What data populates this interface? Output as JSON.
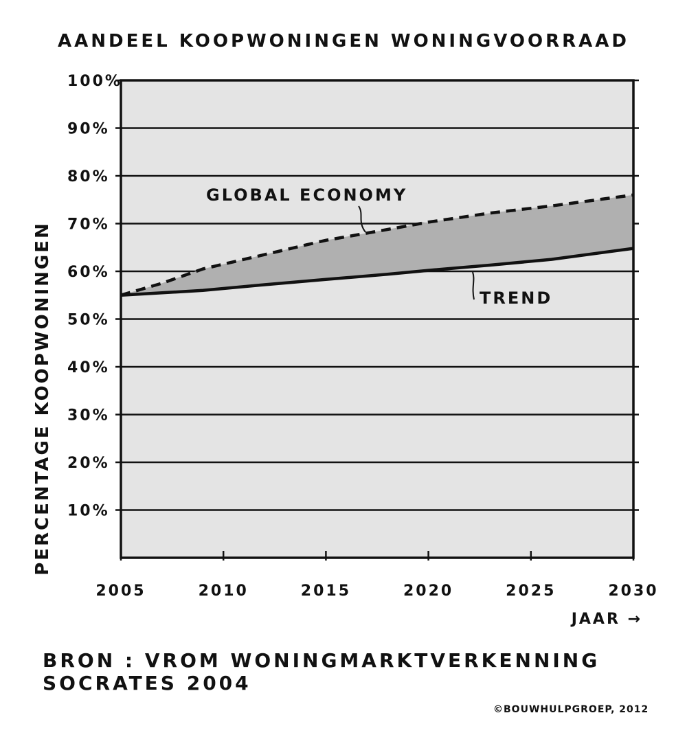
{
  "chart_data": {
    "type": "area",
    "title": "AANDEEL KOOPWONINGEN WONINGVOORRAAD",
    "xlabel": "JAAR →",
    "ylabel": "PERCENTAGE KOOPWONINGEN",
    "xlim": [
      2005,
      2030
    ],
    "ylim": [
      0,
      100
    ],
    "x_ticks": [
      "2005",
      "2010",
      "2015",
      "2020",
      "2025",
      "2030"
    ],
    "y_ticks": [
      "10%",
      "20%",
      "30%",
      "40%",
      "50%",
      "60%",
      "70%",
      "80%",
      "90%",
      "100%"
    ],
    "grid": true,
    "series": [
      {
        "name": "GLOBAL ECONOMY",
        "style": "dashed",
        "x": [
          2005,
          2007,
          2009,
          2012,
          2015,
          2017,
          2020,
          2023,
          2026,
          2030
        ],
        "values": [
          55,
          57.5,
          60.5,
          63.5,
          66.5,
          68,
          70.3,
          72.2,
          73.7,
          76
        ]
      },
      {
        "name": "TREND",
        "style": "solid",
        "x": [
          2005,
          2009,
          2012,
          2015,
          2018,
          2020,
          2023,
          2026,
          2030
        ],
        "values": [
          55,
          56,
          57.2,
          58.3,
          59.4,
          60.2,
          61.3,
          62.5,
          64.8
        ]
      }
    ]
  },
  "source": "BRON : VROM WONINGMARKTVERKENNING SOCRATES 2004",
  "copyright": "©BOUWHULPGROEP, 2012",
  "colors": {
    "plot_background": "#e4e4e4",
    "band_fill": "#b0b0b0",
    "lines": "#111111"
  }
}
